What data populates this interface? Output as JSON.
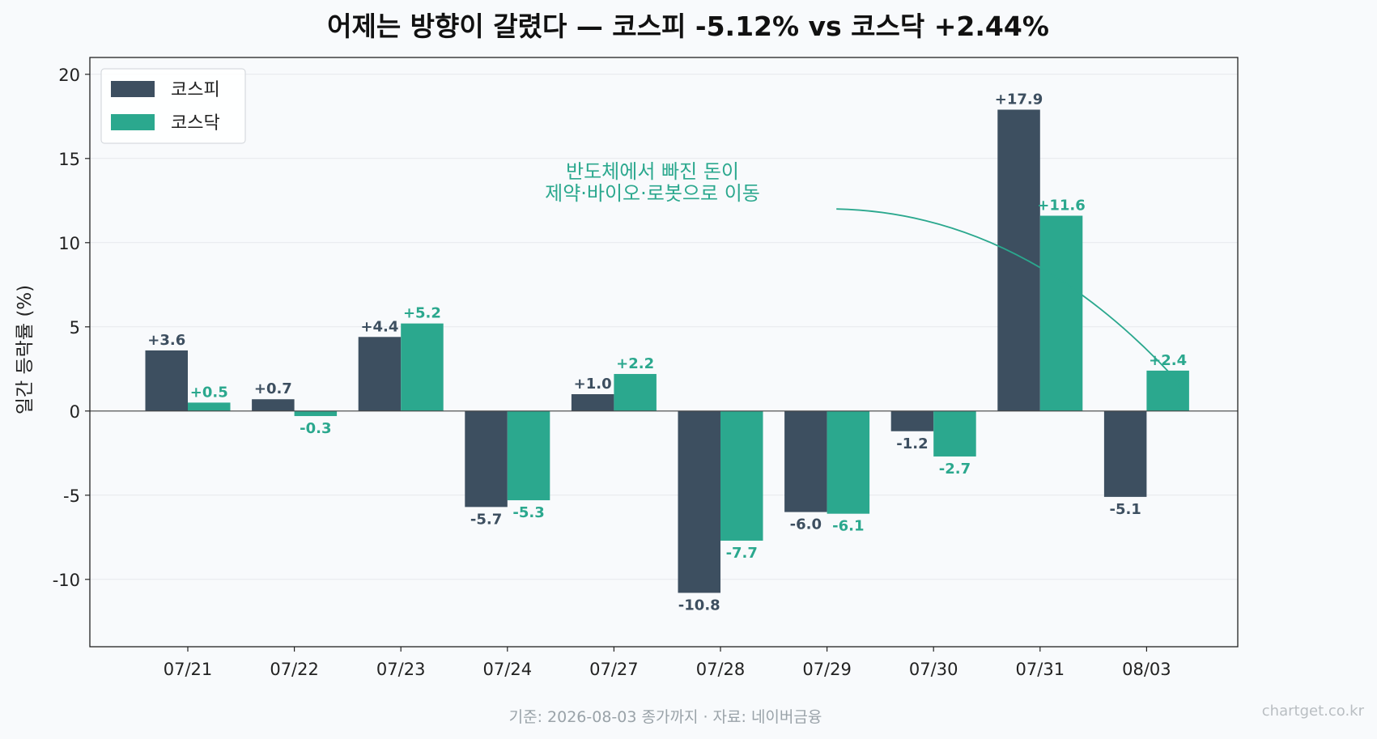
{
  "chart_data": {
    "type": "bar",
    "title": "어제는 방향이 갈렸다 — 코스피 -5.12% vs 코스닥 +2.44%",
    "xlabel": "",
    "ylabel": "일간 등락률 (%)",
    "ylim": [
      -14,
      21
    ],
    "yticks": [
      -10,
      -5,
      0,
      5,
      10,
      15,
      20
    ],
    "ytick_labels": [
      "-10",
      "-5",
      "0",
      "5",
      "10",
      "15",
      "20"
    ],
    "grid": true,
    "legend_position": "upper-left",
    "categories": [
      "07/21",
      "07/22",
      "07/23",
      "07/24",
      "07/27",
      "07/28",
      "07/29",
      "07/30",
      "07/31",
      "08/03"
    ],
    "series": [
      {
        "name": "코스피",
        "color": "#3d4f60",
        "values": [
          3.6,
          0.7,
          4.4,
          -5.7,
          1.0,
          -10.8,
          -6.0,
          -1.2,
          17.9,
          -5.1
        ],
        "labels": [
          "+3.6",
          "+0.7",
          "+4.4",
          "-5.7",
          "+1.0",
          "-10.8",
          "-6.0",
          "-1.2",
          "+17.9",
          "-5.1"
        ]
      },
      {
        "name": "코스닥",
        "color": "#2ba88e",
        "values": [
          0.5,
          -0.3,
          5.2,
          -5.3,
          2.2,
          -7.7,
          -6.1,
          -2.7,
          11.6,
          2.4
        ],
        "labels": [
          "+0.5",
          "-0.3",
          "+5.2",
          "-5.3",
          "+2.2",
          "-7.7",
          "-6.1",
          "-2.7",
          "+11.6",
          "+2.4"
        ]
      }
    ],
    "annotation": {
      "lines": [
        "반도체에서 빠진 돈이",
        "제약·바이오·로봇으로 이동"
      ],
      "color": "#2ba88e",
      "arrow_from": {
        "category": "07/30",
        "value": 12.0
      },
      "arrow_to": {
        "category": "08/03",
        "value": 1.4
      }
    }
  },
  "footer": {
    "source": "기준: 2026-08-03 종가까지 · 자료: 네이버금융",
    "watermark": "chartget.co.kr"
  }
}
